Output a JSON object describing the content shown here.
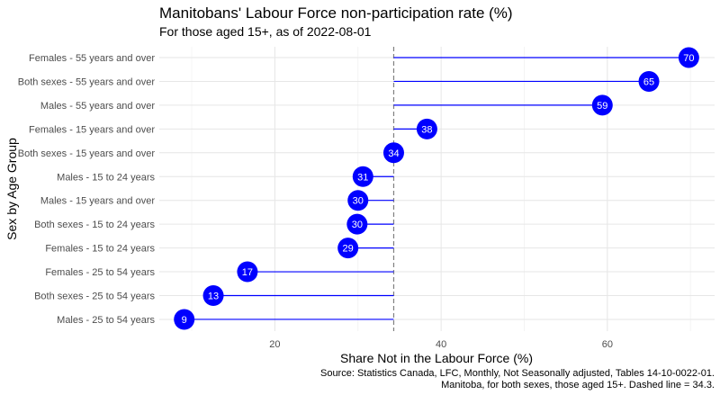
{
  "chart_data": {
    "type": "lollipop",
    "title": "Manitobans' Labour Force non-participation rate (%)",
    "subtitle": "For those aged 15+, as of 2022-08-01",
    "xlabel": "Share Not in the Labour Force (%)",
    "ylabel": "Sex by Age Group",
    "caption": [
      "Source: Statistics Canada, LFC, Monthly, Not Seasonally adjusted, Tables 14-10-0022-01.",
      "Manitoba, for both sexes, those aged 15+. Dashed line = 34.3."
    ],
    "reference_line": 34.3,
    "x_ticks": [
      20,
      40,
      60
    ],
    "xlim": [
      6.1,
      72.9
    ],
    "grid": true,
    "colors": {
      "lollipop": "#0000ff",
      "label_text": "#ffffff",
      "reference": "#808080"
    },
    "categories": [
      "Females - 55 years and over",
      "Both sexes - 55 years and over",
      "Males - 55 years and over",
      "Females - 15 years and over",
      "Both sexes - 15 years and over",
      "Males - 15 to 24 years",
      "Males - 15 years and over",
      "Both sexes - 15 to 24 years",
      "Females - 15 to 24 years",
      "Females - 25 to 54 years",
      "Both sexes - 25 to 54 years",
      "Males - 25 to 54 years"
    ],
    "values": [
      69.8,
      65.0,
      59.4,
      38.3,
      34.3,
      30.6,
      30.0,
      29.9,
      28.8,
      16.7,
      12.6,
      9.1
    ],
    "labels": [
      "70",
      "65",
      "59",
      "38",
      "34",
      "31",
      "30",
      "30",
      "29",
      "17",
      "13",
      "9"
    ]
  }
}
